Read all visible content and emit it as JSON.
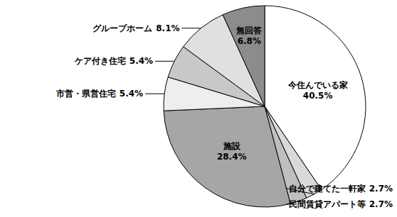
{
  "chart_data": {
    "type": "pie",
    "categories": [
      "今住んでいる家",
      "自分で建てた一軒家",
      "民間賃貸アパート等",
      "施設",
      "市営・県営住宅",
      "ケア付き住宅",
      "グループホーム",
      "無回答"
    ],
    "values": [
      40.5,
      2.7,
      2.7,
      28.4,
      5.4,
      5.4,
      8.1,
      6.8
    ],
    "value_labels": [
      "40.5%",
      "2.7%",
      "2.7%",
      "28.4%",
      "5.4%",
      "5.4%",
      "8.1%",
      "6.8%"
    ],
    "colors": [
      "#ffffff",
      "#d9d9d9",
      "#bfbfbf",
      "#a6a6a6",
      "#eeeeee",
      "#c8c8c8",
      "#e0e0e0",
      "#8c8c8c"
    ],
    "data_labels": true
  }
}
